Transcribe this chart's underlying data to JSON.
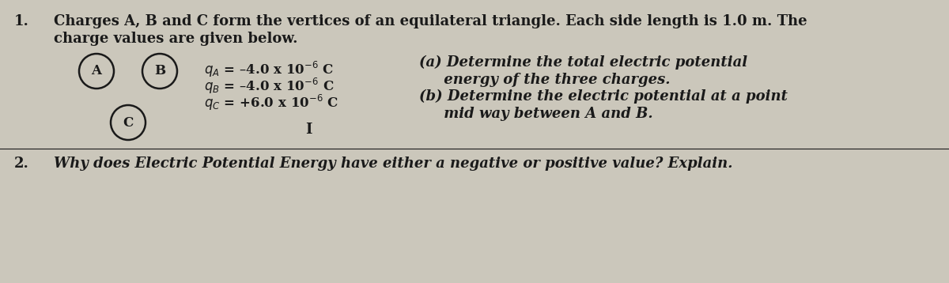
{
  "bg_color": "#cbc7bb",
  "text_color": "#1a1a1a",
  "q1_number": "1.",
  "q1_line1": "Charges A, B and C form the vertices of an equilateral triangle. Each side length is 1.0 m. The",
  "q1_line2": "charge values are given below.",
  "circle_A_label": "A",
  "circle_B_label": "B",
  "circle_C_label": "C",
  "part_a_line1": "(a) Determine the total electric potential",
  "part_a_line2": "     energy of the three charges.",
  "part_b_line1": "(b) Determine the electric potential at a point",
  "part_b_line2": "     mid way between A and B.",
  "q2_number": "2.",
  "q2_text": "Why does Electric Potential Energy have either a negative or positive value? Explain.",
  "font_size_main": 13.0,
  "font_size_charges": 12.0,
  "font_size_circle": 12.0
}
